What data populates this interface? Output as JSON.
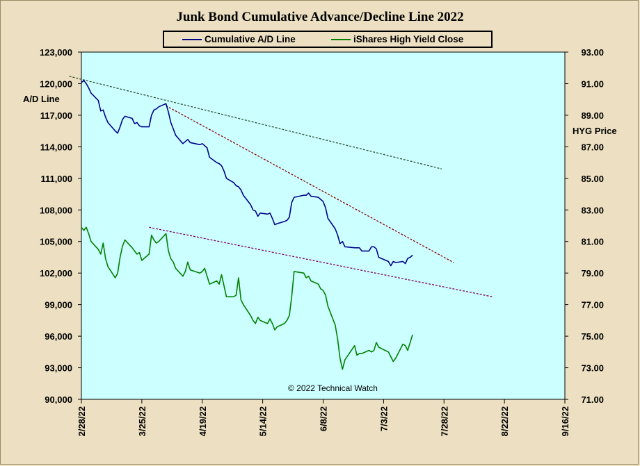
{
  "chart_data": {
    "type": "line",
    "title": "Junk Bond Cumulative  Advance/Decline  Line 2022",
    "left_axis_label": "A/D Line",
    "right_axis_label": "HYG Price",
    "copyright": "© 2022 Technical Watch",
    "legend_placement": "top-center",
    "grid": false,
    "left_ylim": [
      90000,
      123000
    ],
    "right_ylim": [
      71,
      93
    ],
    "left_ticks": [
      {
        "value": 90000,
        "label": "90,000"
      },
      {
        "value": 93000,
        "label": "93,000"
      },
      {
        "value": 96000,
        "label": "96,000"
      },
      {
        "value": 99000,
        "label": "99,000"
      },
      {
        "value": 102000,
        "label": "102,000"
      },
      {
        "value": 105000,
        "label": "105,000"
      },
      {
        "value": 108000,
        "label": "108,000"
      },
      {
        "value": 111000,
        "label": "111,000"
      },
      {
        "value": 114000,
        "label": "114,000"
      },
      {
        "value": 117000,
        "label": "117,000"
      },
      {
        "value": 120000,
        "label": "120,000"
      },
      {
        "value": 123000,
        "label": "123,000"
      }
    ],
    "right_ticks": [
      {
        "value": 71,
        "label": "71.00"
      },
      {
        "value": 73,
        "label": "73.00"
      },
      {
        "value": 75,
        "label": "75.00"
      },
      {
        "value": 77,
        "label": "77.00"
      },
      {
        "value": 79,
        "label": "79.00"
      },
      {
        "value": 81,
        "label": "81.00"
      },
      {
        "value": 83,
        "label": "83.00"
      },
      {
        "value": 85,
        "label": "85.00"
      },
      {
        "value": 87,
        "label": "87.00"
      },
      {
        "value": 89,
        "label": "89.00"
      },
      {
        "value": 91,
        "label": "91.00"
      },
      {
        "value": 93,
        "label": "93.00"
      }
    ],
    "x_range": [
      "2022-02-28",
      "2022-09-16"
    ],
    "x_ticks": [
      {
        "date": "2022-02-28",
        "label": "2/28/22"
      },
      {
        "date": "2022-03-25",
        "label": "3/25/22"
      },
      {
        "date": "2022-04-19",
        "label": "4/19/22"
      },
      {
        "date": "2022-05-14",
        "label": "5/14/22"
      },
      {
        "date": "2022-06-08",
        "label": "6/8/22"
      },
      {
        "date": "2022-07-03",
        "label": "7/3/22"
      },
      {
        "date": "2022-07-28",
        "label": "7/28/22"
      },
      {
        "date": "2022-08-22",
        "label": "8/22/22"
      },
      {
        "date": "2022-09-16",
        "label": "9/16/22"
      }
    ],
    "series": [
      {
        "name": "Cumulative A/D Line",
        "axis": "left",
        "color": "#00008b",
        "points": [
          [
            "2022-02-28",
            120100
          ],
          [
            "2022-03-01",
            120300
          ],
          [
            "2022-03-02",
            120000
          ],
          [
            "2022-03-03",
            119600
          ],
          [
            "2022-03-04",
            119100
          ],
          [
            "2022-03-07",
            118400
          ],
          [
            "2022-03-08",
            117400
          ],
          [
            "2022-03-09",
            117500
          ],
          [
            "2022-03-10",
            116800
          ],
          [
            "2022-03-11",
            116300
          ],
          [
            "2022-03-14",
            115500
          ],
          [
            "2022-03-15",
            115300
          ],
          [
            "2022-03-16",
            115900
          ],
          [
            "2022-03-17",
            116600
          ],
          [
            "2022-03-18",
            116900
          ],
          [
            "2022-03-21",
            116700
          ],
          [
            "2022-03-22",
            116200
          ],
          [
            "2022-03-23",
            116300
          ],
          [
            "2022-03-24",
            116000
          ],
          [
            "2022-03-25",
            115900
          ],
          [
            "2022-03-28",
            115900
          ],
          [
            "2022-03-29",
            117000
          ],
          [
            "2022-03-30",
            117500
          ],
          [
            "2022-03-31",
            117600
          ],
          [
            "2022-04-01",
            117800
          ],
          [
            "2022-04-04",
            118100
          ],
          [
            "2022-04-05",
            117300
          ],
          [
            "2022-04-06",
            116300
          ],
          [
            "2022-04-07",
            115700
          ],
          [
            "2022-04-08",
            115100
          ],
          [
            "2022-04-11",
            114300
          ],
          [
            "2022-04-12",
            114500
          ],
          [
            "2022-04-13",
            114700
          ],
          [
            "2022-04-14",
            114400
          ],
          [
            "2022-04-18",
            114200
          ],
          [
            "2022-04-19",
            114300
          ],
          [
            "2022-04-20",
            114100
          ],
          [
            "2022-04-21",
            113900
          ],
          [
            "2022-04-22",
            113000
          ],
          [
            "2022-04-25",
            112500
          ],
          [
            "2022-04-26",
            112400
          ],
          [
            "2022-04-27",
            112200
          ],
          [
            "2022-04-28",
            111700
          ],
          [
            "2022-04-29",
            111000
          ],
          [
            "2022-05-02",
            110600
          ],
          [
            "2022-05-03",
            110300
          ],
          [
            "2022-05-04",
            110200
          ],
          [
            "2022-05-05",
            109900
          ],
          [
            "2022-05-06",
            109400
          ],
          [
            "2022-05-09",
            108500
          ],
          [
            "2022-05-10",
            108000
          ],
          [
            "2022-05-11",
            107900
          ],
          [
            "2022-05-12",
            107400
          ],
          [
            "2022-05-13",
            107700
          ],
          [
            "2022-05-16",
            107600
          ],
          [
            "2022-05-17",
            107700
          ],
          [
            "2022-05-18",
            107200
          ],
          [
            "2022-05-19",
            106600
          ],
          [
            "2022-05-20",
            106700
          ],
          [
            "2022-05-23",
            106900
          ],
          [
            "2022-05-24",
            107000
          ],
          [
            "2022-05-25",
            107300
          ],
          [
            "2022-05-26",
            108700
          ],
          [
            "2022-05-27",
            109200
          ],
          [
            "2022-05-31",
            109400
          ],
          [
            "2022-06-01",
            109400
          ],
          [
            "2022-06-02",
            109600
          ],
          [
            "2022-06-03",
            109300
          ],
          [
            "2022-06-06",
            109200
          ],
          [
            "2022-06-07",
            109000
          ],
          [
            "2022-06-08",
            108800
          ],
          [
            "2022-06-09",
            108200
          ],
          [
            "2022-06-10",
            107200
          ],
          [
            "2022-06-13",
            106200
          ],
          [
            "2022-06-14",
            105600
          ],
          [
            "2022-06-15",
            104800
          ],
          [
            "2022-06-16",
            105000
          ],
          [
            "2022-06-17",
            104500
          ],
          [
            "2022-06-21",
            104400
          ],
          [
            "2022-06-22",
            104400
          ],
          [
            "2022-06-23",
            104400
          ],
          [
            "2022-06-24",
            104100
          ],
          [
            "2022-06-27",
            104100
          ],
          [
            "2022-06-28",
            104500
          ],
          [
            "2022-06-29",
            104500
          ],
          [
            "2022-06-30",
            104300
          ],
          [
            "2022-07-01",
            103500
          ],
          [
            "2022-07-05",
            103100
          ],
          [
            "2022-07-06",
            102700
          ],
          [
            "2022-07-07",
            103100
          ],
          [
            "2022-07-08",
            103000
          ],
          [
            "2022-07-11",
            103100
          ],
          [
            "2022-07-12",
            102900
          ],
          [
            "2022-07-13",
            103400
          ],
          [
            "2022-07-14",
            103500
          ],
          [
            "2022-07-15",
            103700
          ]
        ]
      },
      {
        "name": "iShares High Yield Close",
        "axis": "right",
        "color": "#008000",
        "points": [
          [
            "2022-02-28",
            81.9
          ],
          [
            "2022-03-01",
            81.7
          ],
          [
            "2022-03-02",
            81.9
          ],
          [
            "2022-03-03",
            81.5
          ],
          [
            "2022-03-04",
            81.0
          ],
          [
            "2022-03-07",
            80.5
          ],
          [
            "2022-03-08",
            80.2
          ],
          [
            "2022-03-09",
            80.9
          ],
          [
            "2022-03-10",
            79.9
          ],
          [
            "2022-03-11",
            79.4
          ],
          [
            "2022-03-14",
            78.7
          ],
          [
            "2022-03-15",
            79.0
          ],
          [
            "2022-03-16",
            80.0
          ],
          [
            "2022-03-17",
            80.7
          ],
          [
            "2022-03-18",
            81.1
          ],
          [
            "2022-03-21",
            80.6
          ],
          [
            "2022-03-22",
            80.4
          ],
          [
            "2022-03-23",
            80.2
          ],
          [
            "2022-03-24",
            80.3
          ],
          [
            "2022-03-25",
            79.8
          ],
          [
            "2022-03-28",
            80.2
          ],
          [
            "2022-03-29",
            81.4
          ],
          [
            "2022-03-30",
            81.1
          ],
          [
            "2022-03-31",
            80.9
          ],
          [
            "2022-04-01",
            81.0
          ],
          [
            "2022-04-04",
            81.5
          ],
          [
            "2022-04-05",
            80.4
          ],
          [
            "2022-04-06",
            79.9
          ],
          [
            "2022-04-07",
            79.7
          ],
          [
            "2022-04-08",
            79.3
          ],
          [
            "2022-04-11",
            78.8
          ],
          [
            "2022-04-12",
            79.1
          ],
          [
            "2022-04-13",
            79.7
          ],
          [
            "2022-04-14",
            79.2
          ],
          [
            "2022-04-18",
            79.0
          ],
          [
            "2022-04-19",
            79.1
          ],
          [
            "2022-04-20",
            79.3
          ],
          [
            "2022-04-21",
            78.8
          ],
          [
            "2022-04-22",
            78.3
          ],
          [
            "2022-04-25",
            78.5
          ],
          [
            "2022-04-26",
            78.3
          ],
          [
            "2022-04-27",
            78.9
          ],
          [
            "2022-04-28",
            78.2
          ],
          [
            "2022-04-29",
            77.5
          ],
          [
            "2022-05-02",
            77.5
          ],
          [
            "2022-05-03",
            77.6
          ],
          [
            "2022-05-04",
            78.7
          ],
          [
            "2022-05-05",
            77.3
          ],
          [
            "2022-05-06",
            77.0
          ],
          [
            "2022-05-09",
            76.3
          ],
          [
            "2022-05-10",
            76.0
          ],
          [
            "2022-05-11",
            75.8
          ],
          [
            "2022-05-12",
            76.2
          ],
          [
            "2022-05-13",
            76.0
          ],
          [
            "2022-05-16",
            75.8
          ],
          [
            "2022-05-17",
            76.1
          ],
          [
            "2022-05-18",
            75.8
          ],
          [
            "2022-05-19",
            75.4
          ],
          [
            "2022-05-20",
            75.6
          ],
          [
            "2022-05-23",
            75.8
          ],
          [
            "2022-05-24",
            76.0
          ],
          [
            "2022-05-25",
            76.3
          ],
          [
            "2022-05-26",
            77.5
          ],
          [
            "2022-05-27",
            79.1
          ],
          [
            "2022-05-31",
            79.0
          ],
          [
            "2022-06-01",
            78.7
          ],
          [
            "2022-06-02",
            78.8
          ],
          [
            "2022-06-03",
            78.5
          ],
          [
            "2022-06-06",
            78.3
          ],
          [
            "2022-06-07",
            78.0
          ],
          [
            "2022-06-08",
            77.9
          ],
          [
            "2022-06-09",
            77.6
          ],
          [
            "2022-06-10",
            76.9
          ],
          [
            "2022-06-13",
            75.7
          ],
          [
            "2022-06-14",
            74.8
          ],
          [
            "2022-06-15",
            73.6
          ],
          [
            "2022-06-16",
            72.9
          ],
          [
            "2022-06-17",
            73.5
          ],
          [
            "2022-06-21",
            74.4
          ],
          [
            "2022-06-22",
            73.8
          ],
          [
            "2022-06-23",
            73.9
          ],
          [
            "2022-06-24",
            73.9
          ],
          [
            "2022-06-27",
            74.1
          ],
          [
            "2022-06-28",
            74.0
          ],
          [
            "2022-06-29",
            74.1
          ],
          [
            "2022-06-30",
            74.6
          ],
          [
            "2022-07-01",
            74.3
          ],
          [
            "2022-07-05",
            74.0
          ],
          [
            "2022-07-06",
            73.7
          ],
          [
            "2022-07-07",
            73.4
          ],
          [
            "2022-07-08",
            73.6
          ],
          [
            "2022-07-11",
            74.5
          ],
          [
            "2022-07-12",
            74.4
          ],
          [
            "2022-07-13",
            74.1
          ],
          [
            "2022-07-14",
            74.6
          ],
          [
            "2022-07-15",
            75.1
          ]
        ]
      }
    ],
    "trendlines": [
      {
        "axis": "left",
        "color": "#2f4f2f",
        "from": [
          "2022-02-23",
          120700
        ],
        "to": [
          "2022-07-27",
          111900
        ]
      },
      {
        "axis": "left",
        "color": "#8b0000",
        "from": [
          "2022-04-04",
          117900
        ],
        "to": [
          "2022-08-01",
          103000
        ]
      },
      {
        "axis": "right",
        "color": "#800060",
        "from": [
          "2022-03-28",
          81.9
        ],
        "to": [
          "2022-08-17",
          77.5
        ]
      }
    ]
  }
}
